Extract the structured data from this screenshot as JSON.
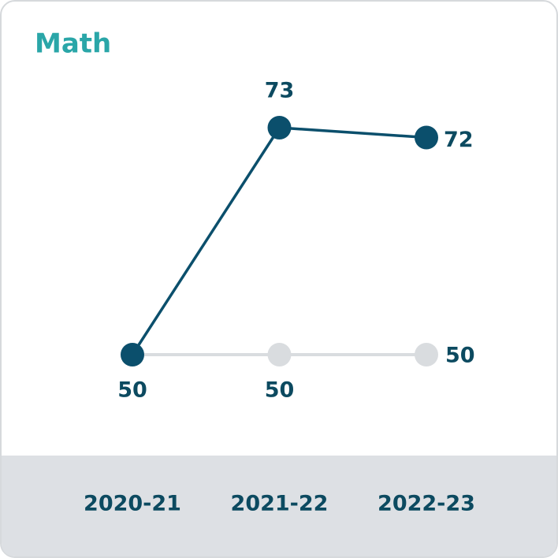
{
  "chart_data": {
    "type": "line",
    "title": "Math",
    "categories": [
      "2020-21",
      "2021-22",
      "2022-23"
    ],
    "series": [
      {
        "color": "#0b4f6c",
        "values": [
          50,
          73,
          72
        ]
      },
      {
        "color": "#d9dcdf",
        "values": [
          50,
          50,
          50
        ]
      }
    ],
    "title_color": "#2aa6a8"
  }
}
